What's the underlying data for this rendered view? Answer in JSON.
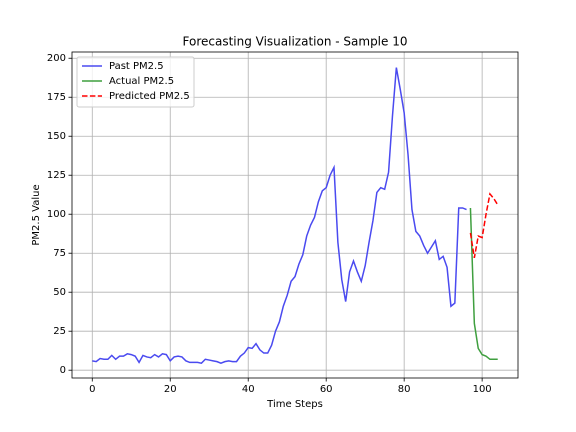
{
  "chart_data": {
    "type": "line",
    "title": "Forecasting Visualization - Sample 10",
    "xlabel": "Time Steps",
    "ylabel": "PM2.5 Value",
    "xlim": [
      -5.2,
      109.2
    ],
    "ylim": [
      -5,
      204
    ],
    "xticks": [
      0,
      20,
      40,
      60,
      80,
      100
    ],
    "yticks": [
      0,
      25,
      50,
      75,
      100,
      125,
      150,
      175,
      200
    ],
    "grid": true,
    "legend": "upper left",
    "series": [
      {
        "name": "Past PM2.5",
        "color": "#4a4af0",
        "linestyle": "solid",
        "x": [
          0,
          1,
          2,
          3,
          4,
          5,
          6,
          7,
          8,
          9,
          10,
          11,
          12,
          13,
          14,
          15,
          16,
          17,
          18,
          19,
          20,
          21,
          22,
          23,
          24,
          25,
          26,
          27,
          28,
          29,
          30,
          31,
          32,
          33,
          34,
          35,
          36,
          37,
          38,
          39,
          40,
          41,
          42,
          43,
          44,
          45,
          46,
          47,
          48,
          49,
          50,
          51,
          52,
          53,
          54,
          55,
          56,
          57,
          58,
          59,
          60,
          61,
          62,
          63,
          64,
          65,
          66,
          67,
          68,
          69,
          70,
          71,
          72,
          73,
          74,
          75,
          76,
          77,
          78,
          79,
          80,
          81,
          82,
          83,
          84,
          85,
          86,
          87,
          88,
          89,
          90,
          91,
          92,
          93,
          94,
          95,
          96
        ],
        "values": [
          6,
          5.5,
          7.5,
          7,
          7,
          9.5,
          7,
          9,
          9,
          10.5,
          10,
          9,
          5,
          9.5,
          8.5,
          8,
          10,
          8.5,
          10.5,
          10,
          6,
          8.5,
          9,
          8.5,
          6,
          5,
          5,
          5,
          4.5,
          7,
          6.5,
          6,
          5.5,
          4.5,
          5.5,
          6,
          5.5,
          5.5,
          9,
          11,
          14.5,
          14,
          17,
          13,
          11,
          11,
          16,
          25,
          31,
          41,
          48,
          57,
          60,
          68,
          74,
          86,
          93,
          98,
          108,
          115,
          117,
          125,
          130,
          82,
          58,
          44,
          63,
          70,
          63,
          57,
          67,
          82,
          96,
          114,
          117,
          116,
          127,
          163,
          194,
          180,
          165,
          138,
          103,
          89,
          86,
          80,
          75,
          79,
          83,
          71,
          73,
          66,
          41,
          43,
          104,
          104,
          103
        ]
      },
      {
        "name": "Actual PM2.5",
        "color": "#3f9f3f",
        "linestyle": "solid",
        "x": [
          97,
          98,
          99,
          100,
          101,
          102,
          103,
          104
        ],
        "values": [
          104,
          30,
          14,
          10,
          9,
          7,
          7,
          7
        ]
      },
      {
        "name": "Predicted PM2.5",
        "color": "#ff0000",
        "linestyle": "dashed",
        "x": [
          97,
          98,
          99,
          100,
          101,
          102,
          103,
          104
        ],
        "values": [
          88,
          72,
          86,
          85,
          100,
          113,
          110,
          106
        ]
      }
    ]
  }
}
